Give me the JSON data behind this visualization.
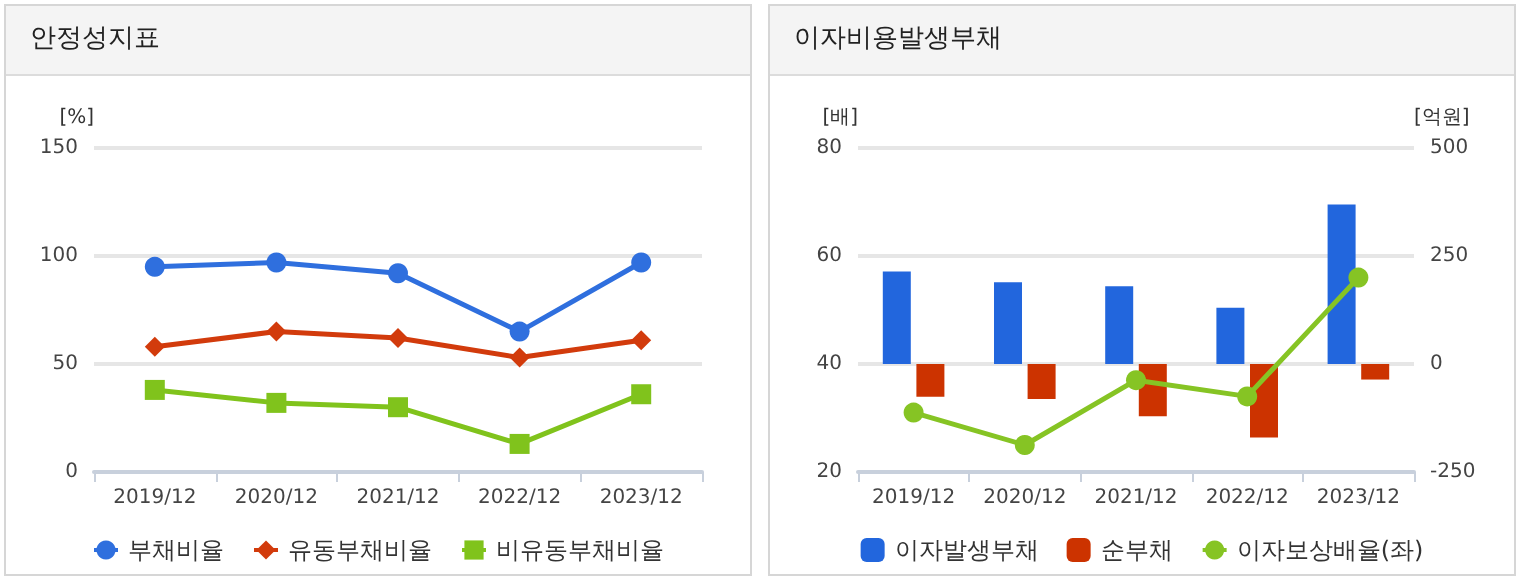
{
  "chart_data": [
    {
      "type": "line",
      "title": "안정성지표",
      "ylabel": "[%]",
      "categories": [
        "2019/12",
        "2020/12",
        "2021/12",
        "2022/12",
        "2023/12"
      ],
      "ylim": [
        0,
        150
      ],
      "yticks": [
        0,
        50,
        100,
        150
      ],
      "grid": "y",
      "legend": "bottom",
      "series": [
        {
          "name": "부채비율",
          "color": "#2f6fde",
          "marker": "circle",
          "values": [
            95,
            97,
            92,
            65,
            97
          ]
        },
        {
          "name": "유동부채비율",
          "color": "#d23b0c",
          "marker": "diamond",
          "values": [
            58,
            65,
            62,
            53,
            61
          ]
        },
        {
          "name": "비유동부채비율",
          "color": "#80c31c",
          "marker": "square",
          "values": [
            38,
            32,
            30,
            13,
            36
          ]
        }
      ]
    },
    {
      "type": "bar",
      "title": "이자비용발생부채",
      "ylabel": "[배]",
      "y2label": "[억원]",
      "categories": [
        "2019/12",
        "2020/12",
        "2021/12",
        "2022/12",
        "2023/12"
      ],
      "ylim": [
        20,
        80
      ],
      "yticks": [
        20,
        40,
        60,
        80
      ],
      "y2lim": [
        -250,
        500
      ],
      "y2ticks": [
        -250,
        0,
        250,
        500
      ],
      "grid": "y",
      "legend": "bottom",
      "series": [
        {
          "name": "이자발생부채",
          "color": "#2266dd",
          "axis": "y2",
          "values": [
            214,
            189,
            180,
            130,
            369
          ]
        },
        {
          "name": "순부채",
          "color": "#cc3300",
          "axis": "y2",
          "values": [
            -76,
            -81,
            -121,
            -170,
            -36
          ]
        },
        {
          "name": "이자보상배율(좌)",
          "type": "line",
          "color": "#86c424",
          "marker": "circle",
          "values": [
            31,
            25,
            37,
            34,
            56
          ]
        }
      ]
    }
  ]
}
